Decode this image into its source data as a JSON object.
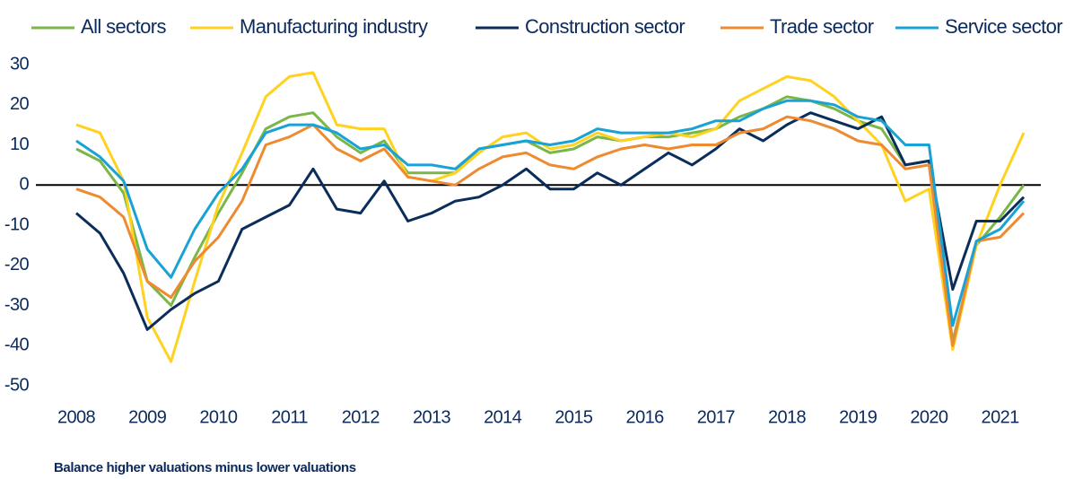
{
  "chart_data": {
    "type": "line",
    "footnote": "Balance higher valuations minus lower valuations",
    "categories": [
      "2008",
      null,
      null,
      "2009",
      null,
      null,
      "2010",
      null,
      null,
      "2011",
      null,
      null,
      "2012",
      null,
      null,
      "2013",
      null,
      null,
      "2014",
      null,
      null,
      "2015",
      null,
      null,
      "2016",
      null,
      null,
      "2017",
      null,
      null,
      "2018",
      null,
      null,
      "2019",
      null,
      null,
      "2020",
      null,
      null,
      "2021",
      null
    ],
    "series": [
      {
        "name": "All sectors",
        "color": "#7ab648",
        "values": [
          9,
          6,
          -2,
          -24,
          -30,
          -18,
          -7,
          3,
          14,
          17,
          18,
          12,
          8,
          11,
          3,
          3,
          3,
          9,
          10,
          11,
          8,
          9,
          12,
          11,
          12,
          12,
          13,
          14,
          17,
          19,
          22,
          21,
          19,
          16,
          14,
          5,
          6,
          -39,
          -15,
          -8,
          0
        ]
      },
      {
        "name": "Manufacturing industry",
        "color": "#ffd21f",
        "values": [
          15,
          13,
          1,
          -33,
          -44,
          -24,
          -5,
          8,
          22,
          27,
          28,
          15,
          14,
          14,
          2,
          1,
          3,
          8,
          12,
          13,
          9,
          10,
          13,
          11,
          12,
          13,
          12,
          14,
          21,
          24,
          27,
          26,
          22,
          16,
          10,
          -4,
          -1,
          -41,
          -15,
          0,
          13
        ]
      },
      {
        "name": "Construction sector",
        "color": "#0a2d5a",
        "values": [
          -7,
          -12,
          -22,
          -36,
          -31,
          -27,
          -24,
          -11,
          -8,
          -5,
          4,
          -6,
          -7,
          1,
          -9,
          -7,
          -4,
          -3,
          0,
          4,
          -1,
          -1,
          3,
          0,
          4,
          8,
          5,
          9,
          14,
          11,
          15,
          18,
          16,
          14,
          17,
          5,
          6,
          -26,
          -9,
          -9,
          -3
        ]
      },
      {
        "name": "Trade sector",
        "color": "#ee8a2f",
        "values": [
          -1,
          -3,
          -8,
          -24,
          -28,
          -19,
          -13,
          -4,
          10,
          12,
          15,
          9,
          6,
          9,
          2,
          1,
          0,
          4,
          7,
          8,
          5,
          4,
          7,
          9,
          10,
          9,
          10,
          10,
          13,
          14,
          17,
          16,
          14,
          11,
          10,
          4,
          5,
          -40,
          -14,
          -13,
          -7
        ]
      },
      {
        "name": "Service sector",
        "color": "#19a2d6",
        "values": [
          11,
          7,
          1,
          -16,
          -23,
          -11,
          -2,
          4,
          13,
          15,
          15,
          13,
          9,
          10,
          5,
          5,
          4,
          9,
          10,
          11,
          10,
          11,
          14,
          13,
          13,
          13,
          14,
          16,
          16,
          19,
          21,
          21,
          20,
          17,
          16,
          10,
          10,
          -35,
          -14,
          -11,
          -4
        ]
      }
    ],
    "ylim": [
      -50,
      30
    ],
    "yticks": [
      30,
      20,
      10,
      0,
      -10,
      -20,
      -30,
      -40,
      -50
    ],
    "zero_line": true,
    "grid": false,
    "legend": "top"
  }
}
